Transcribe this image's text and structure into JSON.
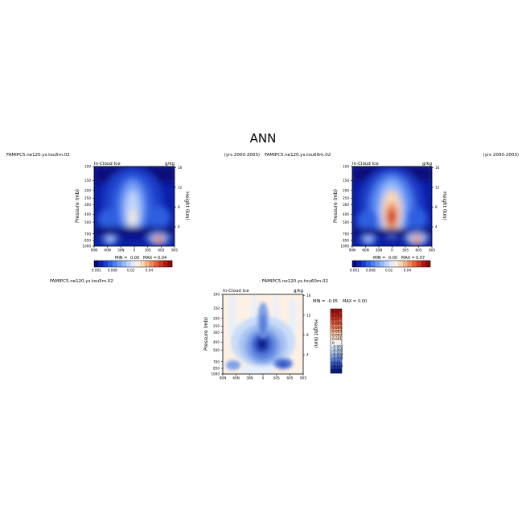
{
  "page_title": "ANN",
  "panels": [
    {
      "case_name": "FAMIPC5.ne120.ys.tou5m.02",
      "years": "(yrs 2000-2003)",
      "variable": "In-Cloud Ice",
      "units": "g/kg",
      "min_label": "MIN =",
      "min_value": "0.00",
      "max_label": "MAX =",
      "max_value": "0.04"
    },
    {
      "case_name": "FAMIPC5.ne120.ys.tou60m.02",
      "years": "(yrs 2000-2003)",
      "variable": "In-Cloud Ice",
      "units": "g/kg",
      "min_label": "MIN =",
      "min_value": "0.00",
      "max_label": "MAX =",
      "max_value": "0.07"
    },
    {
      "case_name": "FAMIPC5.ne120.ys.tou5m.02",
      "title_right": "- FAMIPC5.ne120.ys.tou60m.02",
      "variable": "In-Cloud Ice",
      "units": "g/kg",
      "min_label": "MIN =",
      "min_value": "-0.05",
      "max_label": "MAX =",
      "max_value": "0.00"
    }
  ],
  "axes": {
    "ylabel": "Pressure (mb)",
    "y2label": "Height (km)",
    "y_ticks": [
      "100",
      "150",
      "200",
      "250",
      "300",
      "400",
      "500",
      "700",
      "850",
      "1000"
    ],
    "y2_ticks": [
      "16",
      "12",
      "8",
      "4"
    ],
    "x_ticks": [
      "90N",
      "60N",
      "30N",
      "0",
      "30S",
      "60S",
      "90S"
    ]
  },
  "colorbars": {
    "abs_labels": [
      "0.001",
      "0.008",
      "0.02",
      "0.04"
    ],
    "abs_colors": [
      "#08087a",
      "#0b1fa8",
      "#1b3ec8",
      "#2f5fe0",
      "#4d7fef",
      "#6f9cf5",
      "#94b8fa",
      "#bdd3fb",
      "#e0ebfc",
      "#fbeee0",
      "#f7d7b8",
      "#f3b38a",
      "#ec8c5e",
      "#e0603a",
      "#cc3a22",
      "#ad1a14",
      "#8a0a0a"
    ],
    "diff_labels": [
      "0.02",
      "0.015",
      "0.01",
      "0.005",
      "0.004",
      "0.003",
      "0.002",
      "0.001",
      "0",
      "-0.001",
      "-0.002",
      "-0.004",
      "-0.005",
      "-0.01",
      "-0.015",
      "-0.02"
    ],
    "diff_colors": [
      "#a50f0f",
      "#c02118",
      "#d63a26",
      "#e85a3a",
      "#f37c56",
      "#f7a07a",
      "#f9c3a2",
      "#fbe0cc",
      "#fdf0e4",
      "#e6f0fb",
      "#c9dcf8",
      "#a7c3f2",
      "#7fa3e8",
      "#5a80dc",
      "#3858c6",
      "#1e36a6",
      "#0c1a80"
    ]
  },
  "chart_data": [
    {
      "type": "heatmap",
      "title": "In-Cloud Ice",
      "xlabel": "",
      "ylabel": "Pressure (mb)",
      "x": [
        "90N",
        "60N",
        "30N",
        "0",
        "30S",
        "60S",
        "90S"
      ],
      "ylim": [
        1000,
        100
      ],
      "units": "g/kg",
      "min": 0.0,
      "max": 0.04,
      "features": [
        {
          "lat": 0,
          "pressure": 450,
          "value": 0.035
        },
        {
          "lat": -60,
          "pressure": 850,
          "value": 0.04
        },
        {
          "lat": 65,
          "pressure": 850,
          "value": 0.008
        }
      ]
    },
    {
      "type": "heatmap",
      "title": "In-Cloud Ice",
      "xlabel": "",
      "ylabel": "Pressure (mb)",
      "x": [
        "90N",
        "60N",
        "30N",
        "0",
        "30S",
        "60S",
        "90S"
      ],
      "ylim": [
        1000,
        100
      ],
      "units": "g/kg",
      "min": 0.0,
      "max": 0.07,
      "features": [
        {
          "lat": 0,
          "pressure": 450,
          "value": 0.07
        },
        {
          "lat": -60,
          "pressure": 850,
          "value": 0.05
        },
        {
          "lat": 65,
          "pressure": 850,
          "value": 0.01
        }
      ]
    },
    {
      "type": "heatmap",
      "title": "In-Cloud Ice",
      "xlabel": "",
      "ylabel": "Pressure (mb)",
      "x": [
        "90N",
        "60N",
        "30N",
        "0",
        "30S",
        "60S",
        "90S"
      ],
      "ylim": [
        1000,
        100
      ],
      "units": "g/kg",
      "min": -0.05,
      "max": 0.0,
      "features": [
        {
          "lat": 0,
          "pressure": 450,
          "value": -0.05
        },
        {
          "lat": 0,
          "pressure": 200,
          "value": -0.01
        },
        {
          "lat": -60,
          "pressure": 850,
          "value": -0.01
        }
      ]
    }
  ]
}
